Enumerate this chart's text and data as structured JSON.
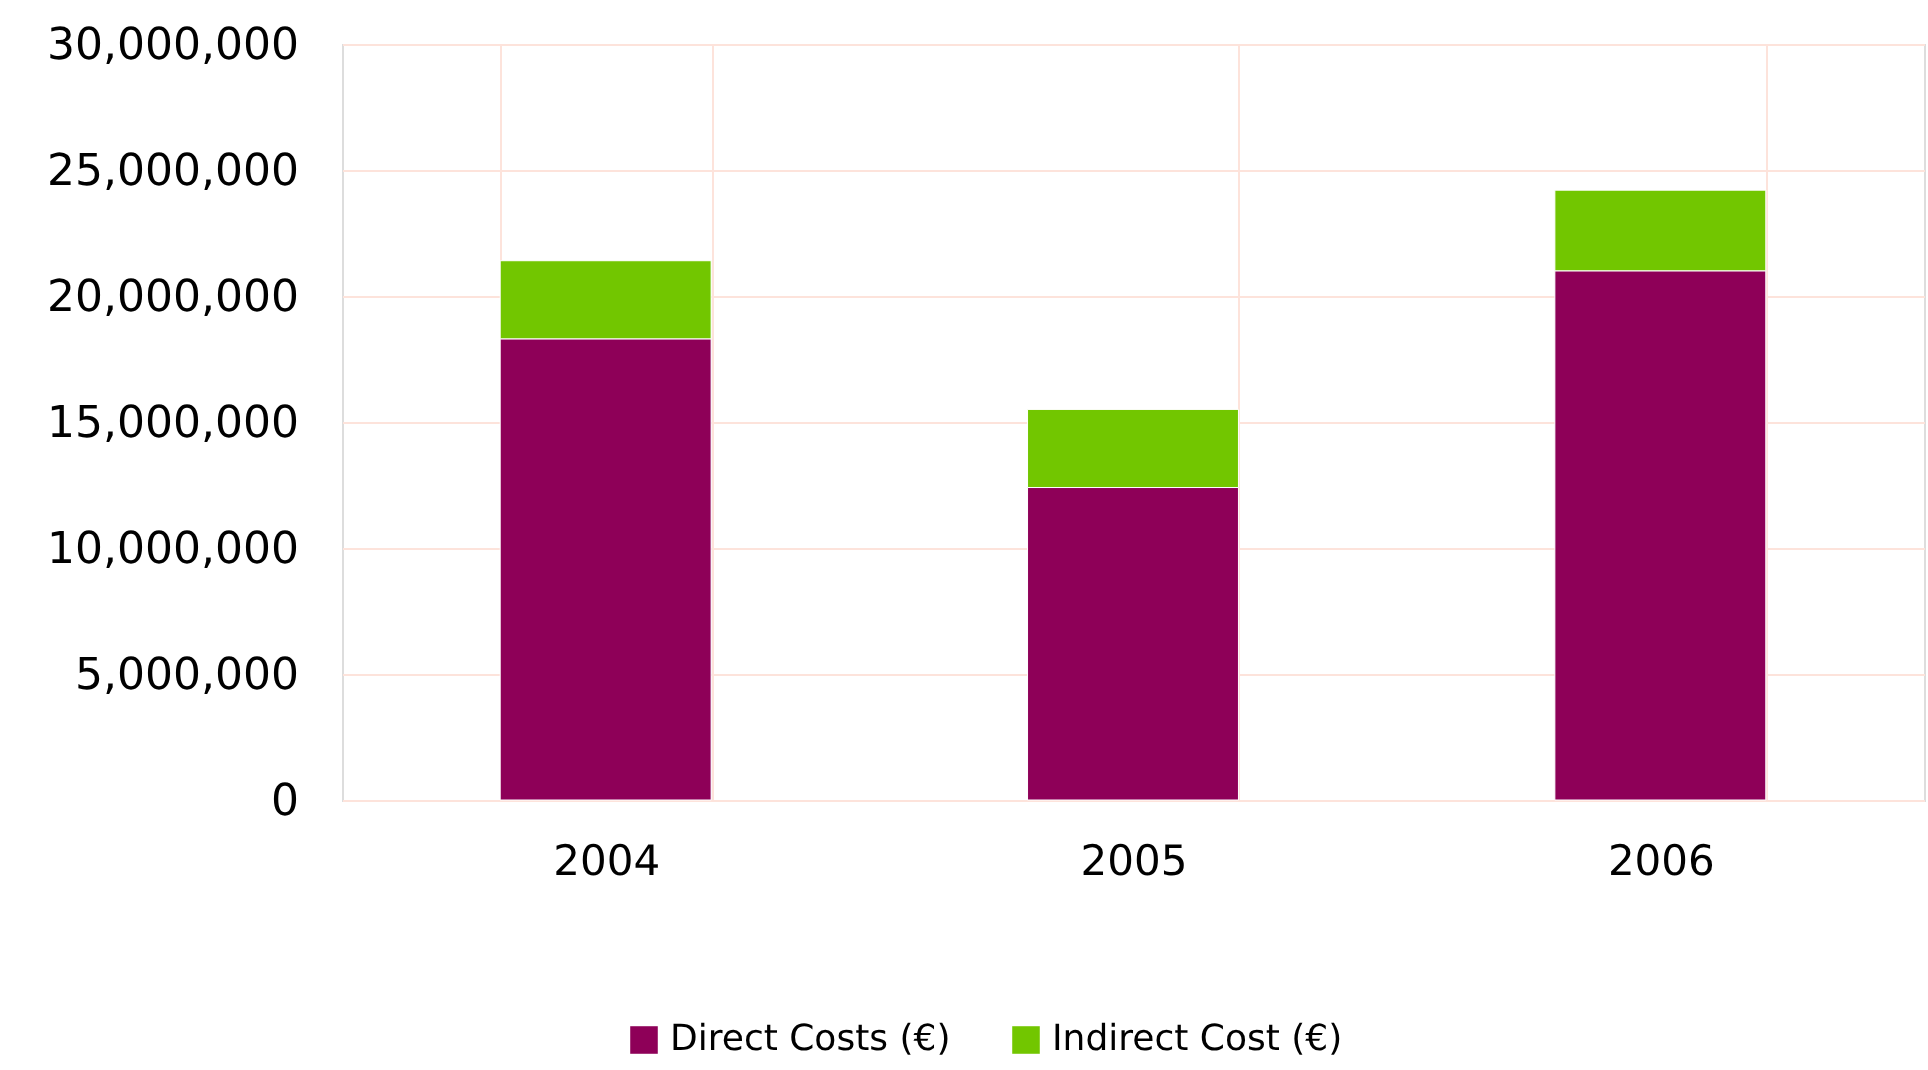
{
  "chart_data": {
    "type": "bar",
    "stacked": true,
    "categories": [
      "2004",
      "2005",
      "2006"
    ],
    "series": [
      {
        "name": "Direct Costs (€)",
        "color": "#8e0058",
        "values": [
          18300000,
          12400000,
          21000000
        ]
      },
      {
        "name": "Indirect Cost (€)",
        "color": "#72c600",
        "values": [
          3100000,
          3100000,
          3200000
        ]
      }
    ],
    "ylim": [
      0,
      30000000
    ],
    "yticks": [
      0,
      {
        "value": 5000000,
        "label": "5,000,000"
      },
      {
        "value": 10000000,
        "label": "10,000,000"
      },
      {
        "value": 15000000,
        "label": "15,000,000"
      },
      {
        "value": 20000000,
        "label": "20,000,000"
      },
      {
        "value": 25000000,
        "label": "25,000,000"
      },
      {
        "value": 30000000,
        "label": "30,000,000"
      }
    ],
    "grid": true,
    "legend": "bottom"
  }
}
